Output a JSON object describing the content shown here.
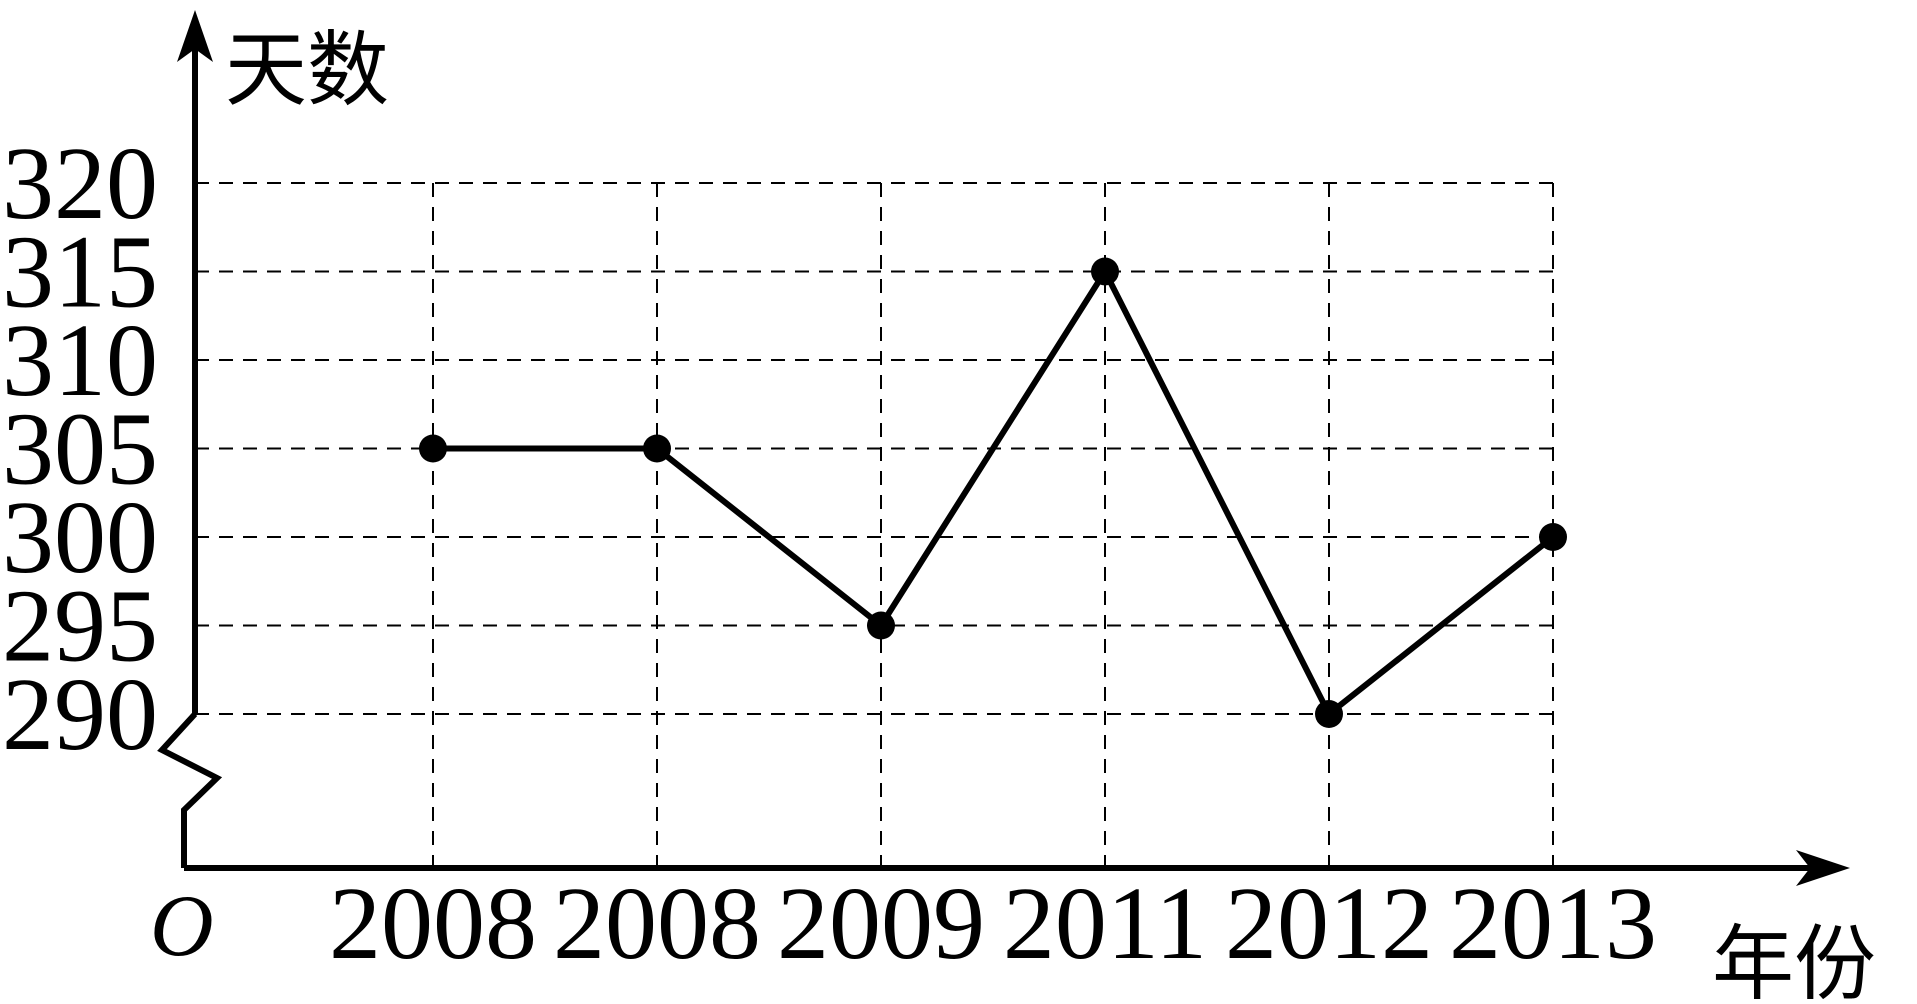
{
  "chart_data": {
    "type": "line",
    "title": "",
    "xlabel": "年份",
    "ylabel": "天数",
    "origin_label": "O",
    "categories": [
      "2008",
      "2008",
      "2009",
      "2011",
      "2012",
      "2013"
    ],
    "series": [
      {
        "values": [
          305,
          305,
          295,
          315,
          290,
          300
        ]
      }
    ],
    "ylim": [
      290,
      320
    ],
    "yticks": [
      320,
      315,
      310,
      305,
      300,
      295,
      290
    ],
    "grid": true,
    "axis_break": true,
    "legend": "none"
  }
}
